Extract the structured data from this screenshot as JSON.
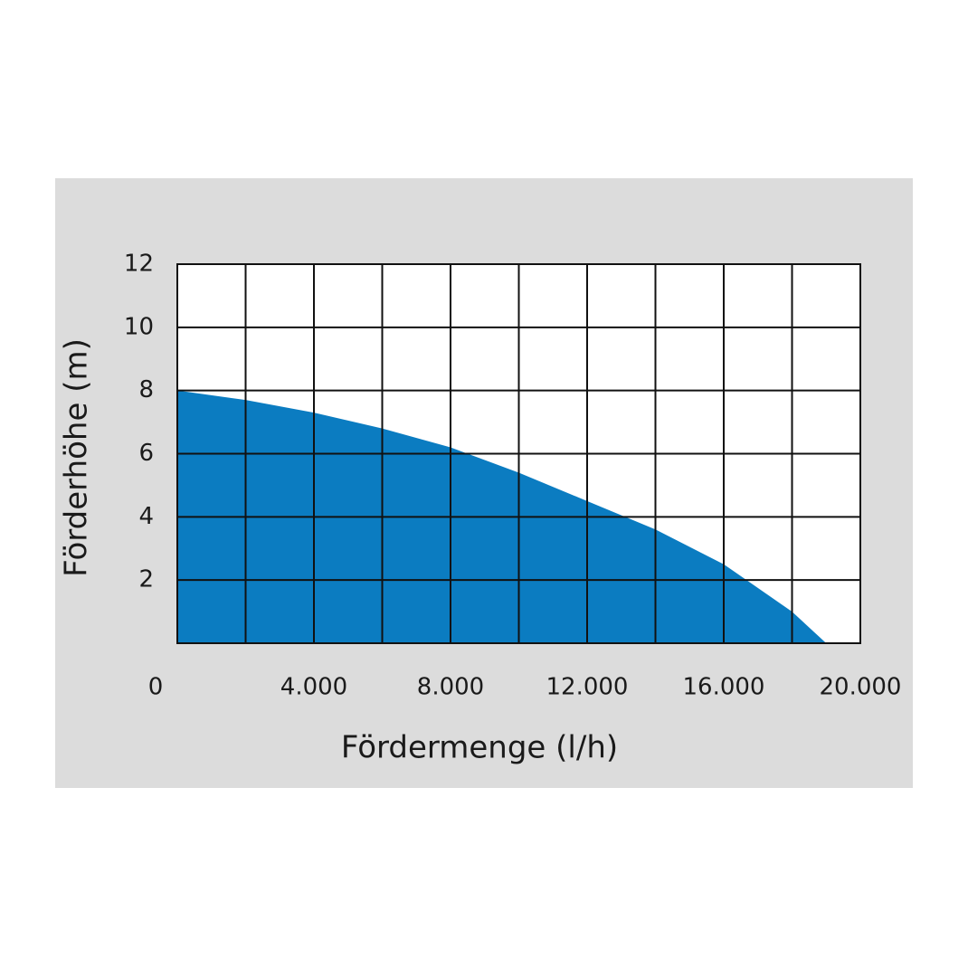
{
  "chart_data": {
    "type": "area",
    "x_label": "Fördermenge (l/h)",
    "y_label": "Förderhöhe (m)",
    "x": [
      0,
      2000,
      4000,
      6000,
      8000,
      10000,
      12000,
      14000,
      16000,
      18000,
      19000
    ],
    "values": [
      8,
      7.7,
      7.3,
      6.8,
      6.2,
      5.4,
      4.5,
      3.6,
      2.5,
      1,
      0
    ],
    "color": "#0b7cc1",
    "xlim": [
      0,
      20000
    ],
    "ylim": [
      0,
      12
    ],
    "xticks": [
      0,
      {
        "value": 4000,
        "label": "4.000"
      },
      {
        "value": 8000,
        "label": "8.000"
      },
      {
        "value": 12000,
        "label": "12.000"
      },
      {
        "value": 16000,
        "label": "16.000"
      },
      {
        "value": 20000,
        "label": "20.000"
      }
    ],
    "minor_xticks": [
      2000,
      6000,
      10000,
      14000,
      18000
    ],
    "yticks": [
      2,
      4,
      6,
      8,
      10,
      12
    ],
    "grid": true
  }
}
